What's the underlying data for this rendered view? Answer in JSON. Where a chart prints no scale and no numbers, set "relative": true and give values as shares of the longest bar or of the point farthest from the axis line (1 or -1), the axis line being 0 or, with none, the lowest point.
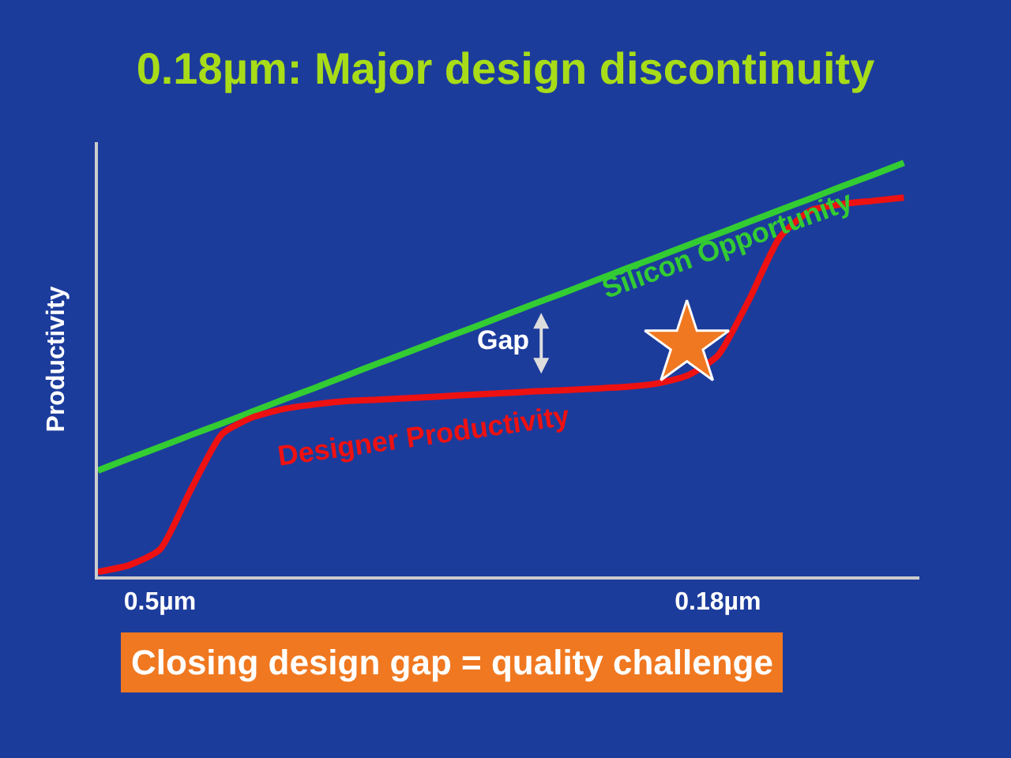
{
  "chart_data": {
    "type": "line",
    "title": "0.18µm: Major design discontinuity",
    "ylabel": "Productivity",
    "relative": true,
    "grid": false,
    "categories": [
      null,
      null,
      "0.5µm",
      null,
      null,
      null,
      null,
      null,
      null,
      null,
      null,
      null,
      null,
      null,
      null,
      null,
      null,
      null,
      null,
      null,
      "0.18µm",
      null,
      null,
      null,
      null,
      null,
      null
    ],
    "series": [
      {
        "name": "Silicon Opportunity",
        "color": "#33cc33",
        "marker": "none",
        "values": [
          0.256,
          0.285,
          0.313,
          0.342,
          0.37,
          0.399,
          0.428,
          0.456,
          0.485,
          0.514,
          0.542,
          0.571,
          0.599,
          0.628,
          0.657,
          0.685,
          0.714,
          0.743,
          0.771,
          0.8,
          0.828,
          0.857,
          0.886,
          0.914,
          0.943,
          0.971,
          1.0
        ]
      },
      {
        "name": "Designer Productivity",
        "color": "#ee1111",
        "marker": "none",
        "values": [
          0.011,
          0.027,
          0.065,
          0.21,
          0.344,
          0.385,
          0.405,
          0.416,
          0.424,
          0.427,
          0.431,
          0.435,
          0.439,
          0.443,
          0.447,
          0.45,
          0.454,
          0.458,
          0.466,
          0.485,
          0.534,
          0.668,
          0.82,
          0.885,
          0.9,
          0.908,
          0.916
        ]
      },
      {
        "type": "scatter",
        "color": "#f07820",
        "marker": "star",
        "values": [
          null,
          null,
          null,
          null,
          null,
          null,
          null,
          null,
          null,
          null,
          null,
          null,
          null,
          null,
          null,
          null,
          null,
          null,
          null,
          0.561,
          null,
          null,
          null,
          null,
          null,
          null,
          null
        ]
      }
    ],
    "annotations": [
      "Gap",
      "Closing design gap = quality challenge"
    ]
  }
}
